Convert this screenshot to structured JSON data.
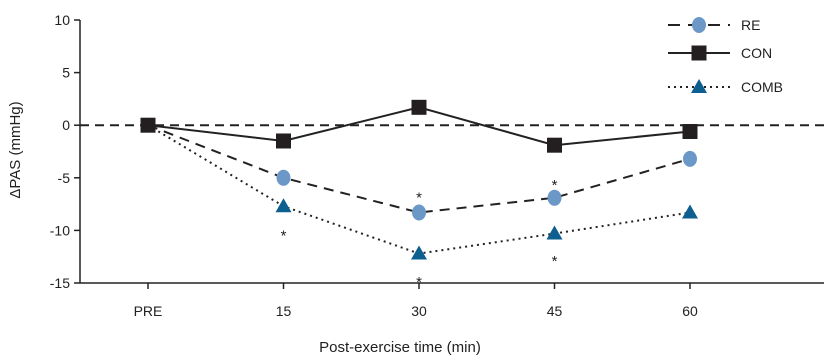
{
  "chart_data": {
    "type": "line",
    "title": "",
    "xlabel": "Post-exercise time (min)",
    "ylabel": "ΔPAS (mmHg)",
    "categories": [
      "PRE",
      "15",
      "30",
      "45",
      "60"
    ],
    "ylim": [
      -15,
      10
    ],
    "yticks": [
      10,
      5,
      0,
      -5,
      -10,
      -15
    ],
    "grid": false,
    "reference_line": 0,
    "legend_position": "top-right",
    "series": [
      {
        "name": "RE",
        "values": [
          0,
          -5.0,
          -8.3,
          -6.9,
          -3.2
        ],
        "marker": "circle",
        "line_style": "dashed",
        "color": "#6c98c8"
      },
      {
        "name": "CON",
        "values": [
          0,
          -1.5,
          1.7,
          -1.9,
          -0.6
        ],
        "marker": "square",
        "line_style": "solid",
        "color": "#231f20"
      },
      {
        "name": "COMB",
        "values": [
          0,
          -7.7,
          -12.2,
          -10.3,
          -8.3
        ],
        "marker": "triangle",
        "line_style": "dotted",
        "color": "#0c5f8f"
      }
    ],
    "annotations": [
      {
        "text": "*",
        "category": "15",
        "y": -10.2
      },
      {
        "text": "*",
        "category": "30",
        "y": -6.6
      },
      {
        "text": "*",
        "category": "30",
        "y": -14.6
      },
      {
        "text": "*",
        "category": "45",
        "y": -5.4
      },
      {
        "text": "*",
        "category": "45",
        "y": -12.6
      }
    ]
  }
}
